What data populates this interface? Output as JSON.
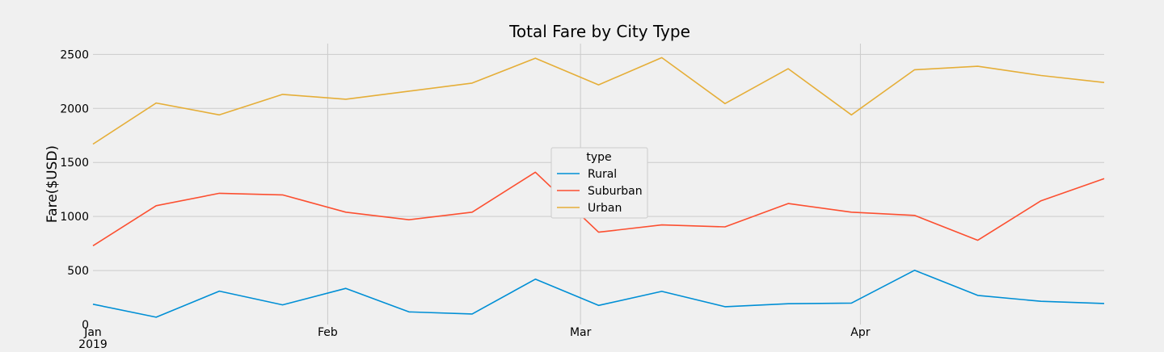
{
  "chart_data": {
    "type": "line",
    "title": "Total Fare by City Type",
    "xlabel": "",
    "ylabel": "Fare($USD)",
    "x_dates": [
      "2019-01-06",
      "2019-01-13",
      "2019-01-20",
      "2019-01-27",
      "2019-02-03",
      "2019-02-10",
      "2019-02-17",
      "2019-02-24",
      "2019-03-03",
      "2019-03-10",
      "2019-03-17",
      "2019-03-24",
      "2019-03-31",
      "2019-04-07",
      "2019-04-14",
      "2019-04-21",
      "2019-04-28"
    ],
    "x_range": [
      "2019-01-06",
      "2019-04-28"
    ],
    "x_ticks": [
      {
        "date": "2019-01-06",
        "label": "Jan",
        "sublabel": "2019"
      },
      {
        "date": "2019-02-01",
        "label": "Feb",
        "sublabel": ""
      },
      {
        "date": "2019-03-01",
        "label": "Mar",
        "sublabel": ""
      },
      {
        "date": "2019-04-01",
        "label": "Apr",
        "sublabel": ""
      }
    ],
    "y_ticks": [
      0,
      500,
      1000,
      1500,
      2000,
      2500
    ],
    "ylim": [
      0,
      2600
    ],
    "grid": true,
    "legend": {
      "title": "type",
      "placement": "center"
    },
    "series": [
      {
        "name": "Rural",
        "color": "#008fd5",
        "values": [
          188,
          68,
          309,
          182,
          335,
          117,
          98,
          420,
          177,
          307,
          165,
          193,
          199,
          502,
          270,
          215,
          195
        ]
      },
      {
        "name": "Suburban",
        "color": "#fc4f30",
        "values": [
          729,
          1100,
          1215,
          1200,
          1040,
          970,
          1040,
          1410,
          855,
          922,
          904,
          1120,
          1040,
          1010,
          780,
          1145,
          1350
        ]
      },
      {
        "name": "Urban",
        "color": "#e5ae38",
        "values": [
          1670,
          2050,
          1940,
          2130,
          2085,
          2160,
          2235,
          2465,
          2218,
          2470,
          2045,
          2368,
          1940,
          2358,
          2390,
          2305,
          2240
        ]
      }
    ]
  }
}
